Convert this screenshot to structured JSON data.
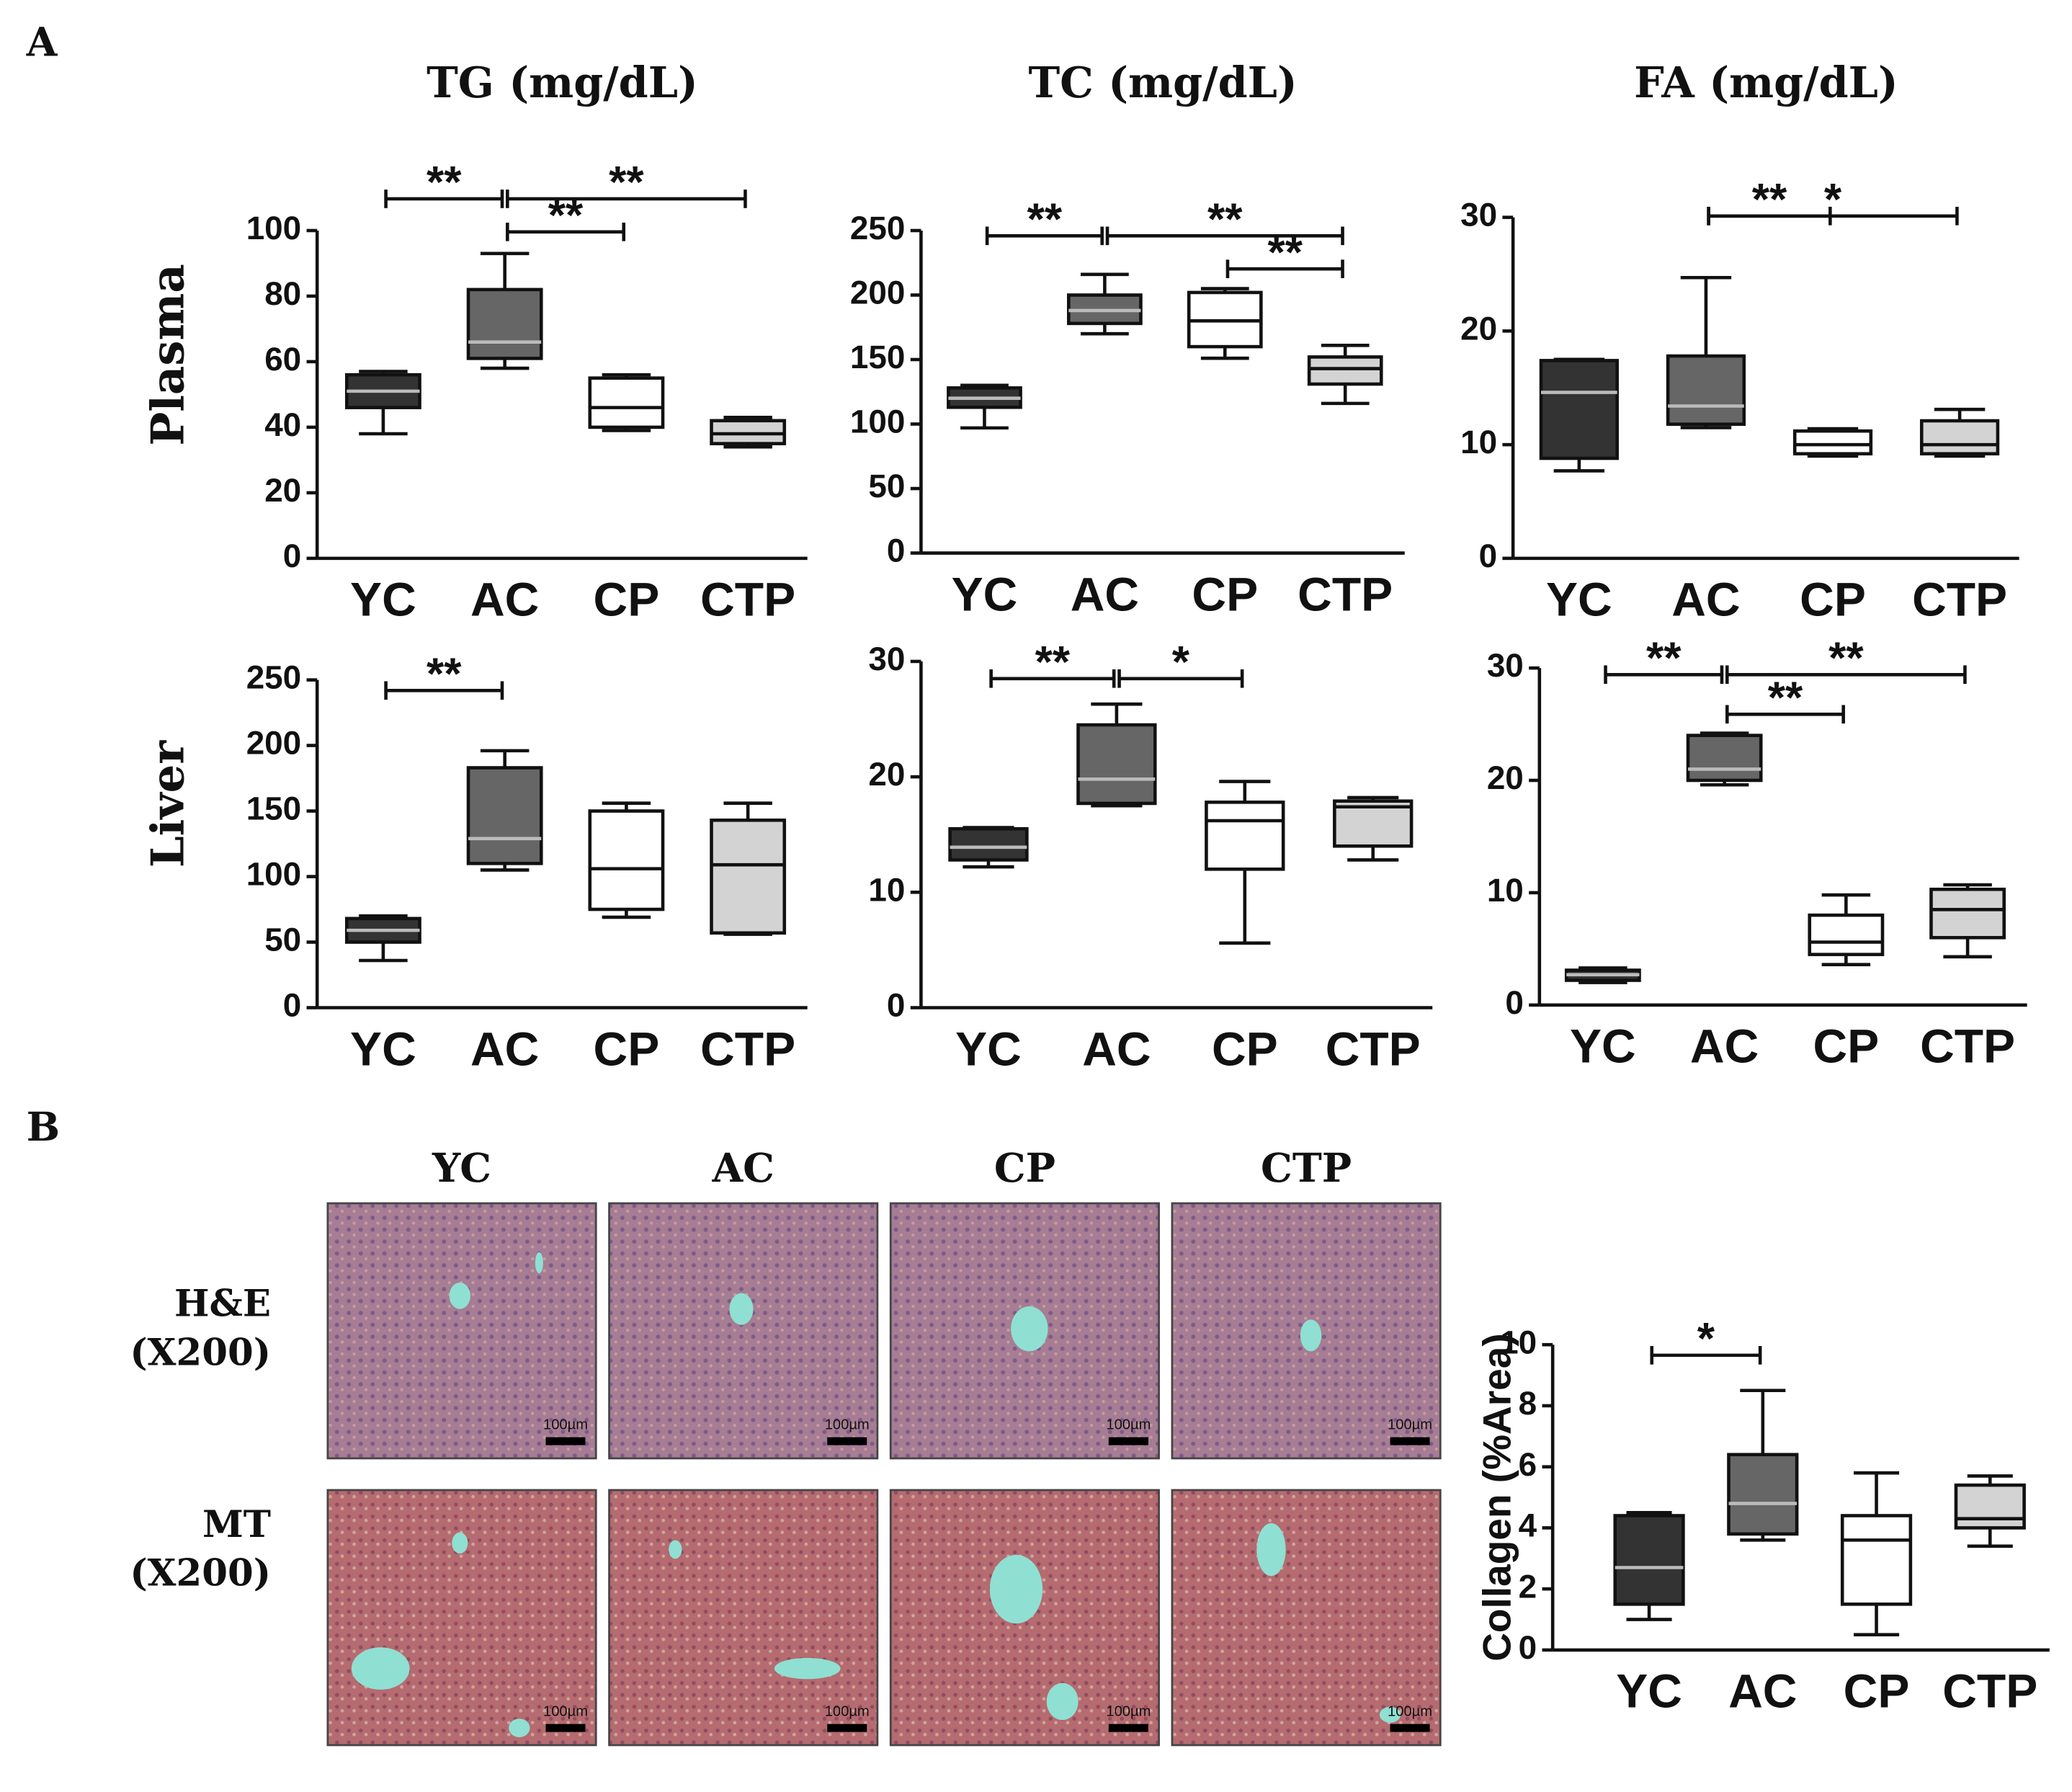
{
  "figure": {
    "panel_a": "A",
    "panel_b": "B",
    "rows": [
      "Plasma",
      "Liver"
    ]
  },
  "micrographs": {
    "columns": [
      "YC",
      "AC",
      "CP",
      "CTP"
    ],
    "rows": [
      {
        "stain": "H&E",
        "magnification": "(X200)"
      },
      {
        "stain": "MT",
        "magnification": "(X200)"
      }
    ],
    "scale_bar": "100µm"
  },
  "chart_data": [
    {
      "type": "box",
      "title": "TG (mg/dL)",
      "categories": [
        "YC",
        "AC",
        "CP",
        "CTP"
      ],
      "colors": [
        "#333333",
        "#666666",
        "#ffffff",
        "#d3d3d3"
      ],
      "boxes": [
        {
          "min": 38,
          "q1": 46,
          "median": 51,
          "q3": 56,
          "max": 57
        },
        {
          "min": 58,
          "q1": 61,
          "median": 66,
          "q3": 82,
          "max": 93
        },
        {
          "min": 39,
          "q1": 40,
          "median": 46,
          "q3": 55,
          "max": 56
        },
        {
          "min": 34,
          "q1": 35,
          "median": 38,
          "q3": 42,
          "max": 43
        }
      ],
      "ylim": [
        0,
        100
      ],
      "yticks": [
        0,
        20,
        40,
        60,
        80,
        100
      ],
      "comparisons": [
        {
          "between": [
            "YC",
            "AC"
          ],
          "label": "**"
        },
        {
          "between": [
            "AC",
            "CTP"
          ],
          "label": "**"
        },
        {
          "between": [
            "AC",
            "CP"
          ],
          "label": "**"
        }
      ]
    },
    {
      "type": "box",
      "title": "TC (mg/dL)",
      "categories": [
        "YC",
        "AC",
        "CP",
        "CTP"
      ],
      "colors": [
        "#333333",
        "#666666",
        "#ffffff",
        "#d3d3d3"
      ],
      "boxes": [
        {
          "min": 97,
          "q1": 113,
          "median": 120,
          "q3": 128,
          "max": 130
        },
        {
          "min": 170,
          "q1": 178,
          "median": 188,
          "q3": 200,
          "max": 216
        },
        {
          "min": 151,
          "q1": 160,
          "median": 180,
          "q3": 202,
          "max": 205
        },
        {
          "min": 116,
          "q1": 131,
          "median": 143,
          "q3": 152,
          "max": 161
        }
      ],
      "ylim": [
        0,
        250
      ],
      "yticks": [
        0,
        50,
        100,
        150,
        200,
        250
      ],
      "comparisons": [
        {
          "between": [
            "YC",
            "AC"
          ],
          "label": "**"
        },
        {
          "between": [
            "AC",
            "CTP"
          ],
          "label": "**"
        },
        {
          "between": [
            "CP",
            "CTP"
          ],
          "label": "**"
        }
      ]
    },
    {
      "type": "box",
      "title": "FA (mg/dL)",
      "categories": [
        "YC",
        "AC",
        "CP",
        "CTP"
      ],
      "colors": [
        "#333333",
        "#666666",
        "#ffffff",
        "#d3d3d3"
      ],
      "boxes": [
        {
          "min": 7.7,
          "q1": 8.8,
          "median": 14.6,
          "q3": 17.4,
          "max": 17.5
        },
        {
          "min": 11.5,
          "q1": 11.8,
          "median": 13.4,
          "q3": 17.8,
          "max": 24.7
        },
        {
          "min": 9,
          "q1": 9.2,
          "median": 10,
          "q3": 11.2,
          "max": 11.4
        },
        {
          "min": 9,
          "q1": 9.2,
          "median": 10,
          "q3": 12.1,
          "max": 13.1
        }
      ],
      "ylim": [
        0,
        30
      ],
      "yticks": [
        0,
        10,
        20,
        30
      ],
      "comparisons": [
        {
          "between": [
            "AC",
            "CTP"
          ],
          "label": "*"
        },
        {
          "between": [
            "AC",
            "CP"
          ],
          "label": "**"
        }
      ]
    },
    {
      "type": "box",
      "categories": [
        "YC",
        "AC",
        "CP",
        "CTP"
      ],
      "colors": [
        "#333333",
        "#666666",
        "#ffffff",
        "#d3d3d3"
      ],
      "boxes": [
        {
          "min": 36,
          "q1": 50,
          "median": 59,
          "q3": 68,
          "max": 70
        },
        {
          "min": 105,
          "q1": 110,
          "median": 129,
          "q3": 183,
          "max": 196
        },
        {
          "min": 69,
          "q1": 75,
          "median": 106,
          "q3": 150,
          "max": 156
        },
        {
          "min": 56,
          "q1": 57,
          "median": 109,
          "q3": 143,
          "max": 156
        }
      ],
      "ylim": [
        0,
        250
      ],
      "yticks": [
        0,
        50,
        100,
        150,
        200,
        250
      ],
      "comparisons": [
        {
          "between": [
            "YC",
            "AC"
          ],
          "label": "**"
        }
      ]
    },
    {
      "type": "box",
      "categories": [
        "YC",
        "AC",
        "CP",
        "CTP"
      ],
      "colors": [
        "#333333",
        "#666666",
        "#ffffff",
        "#d3d3d3"
      ],
      "boxes": [
        {
          "min": 12.2,
          "q1": 12.8,
          "median": 13.9,
          "q3": 15.5,
          "max": 15.6
        },
        {
          "min": 17.5,
          "q1": 17.7,
          "median": 19.8,
          "q3": 24.5,
          "max": 26.3
        },
        {
          "min": 5.6,
          "q1": 12,
          "median": 16.2,
          "q3": 17.8,
          "max": 19.6
        },
        {
          "min": 12.8,
          "q1": 14,
          "median": 17.4,
          "q3": 17.9,
          "max": 18.2
        }
      ],
      "ylim": [
        0,
        30
      ],
      "yticks": [
        0,
        10,
        20,
        30
      ],
      "comparisons": [
        {
          "between": [
            "YC",
            "AC"
          ],
          "label": "**"
        },
        {
          "between": [
            "AC",
            "CP"
          ],
          "label": "*"
        }
      ]
    },
    {
      "type": "box",
      "categories": [
        "YC",
        "AC",
        "CP",
        "CTP"
      ],
      "colors": [
        "#333333",
        "#666666",
        "#ffffff",
        "#d3d3d3"
      ],
      "boxes": [
        {
          "min": 2,
          "q1": 2.2,
          "median": 2.7,
          "q3": 3.1,
          "max": 3.3
        },
        {
          "min": 19.6,
          "q1": 20,
          "median": 21,
          "q3": 24,
          "max": 24.2
        },
        {
          "min": 3.6,
          "q1": 4.5,
          "median": 5.6,
          "q3": 8,
          "max": 9.8
        },
        {
          "min": 4.3,
          "q1": 6,
          "median": 8.5,
          "q3": 10.3,
          "max": 10.7
        }
      ],
      "ylim": [
        0,
        30
      ],
      "yticks": [
        0,
        10,
        20,
        30
      ],
      "comparisons": [
        {
          "between": [
            "YC",
            "AC"
          ],
          "label": "**"
        },
        {
          "between": [
            "AC",
            "CTP"
          ],
          "label": "**"
        },
        {
          "between": [
            "AC",
            "CP"
          ],
          "label": "**"
        }
      ]
    },
    {
      "type": "box",
      "y_label": "Collagen (%Area)",
      "categories": [
        "YC",
        "AC",
        "CP",
        "CTP"
      ],
      "colors": [
        "#333333",
        "#666666",
        "#ffffff",
        "#d3d3d3"
      ],
      "boxes": [
        {
          "min": 1,
          "q1": 1.5,
          "median": 2.7,
          "q3": 4.4,
          "max": 4.5
        },
        {
          "min": 3.6,
          "q1": 3.8,
          "median": 4.8,
          "q3": 6.4,
          "max": 8.5
        },
        {
          "min": 0.5,
          "q1": 1.5,
          "median": 3.6,
          "q3": 4.4,
          "max": 5.8
        },
        {
          "min": 3.4,
          "q1": 4,
          "median": 4.3,
          "q3": 5.4,
          "max": 5.7
        }
      ],
      "ylim": [
        0,
        10
      ],
      "yticks": [
        0,
        2,
        4,
        6,
        8,
        10
      ],
      "comparisons": [
        {
          "between": [
            "YC",
            "AC"
          ],
          "label": "*"
        }
      ]
    }
  ]
}
